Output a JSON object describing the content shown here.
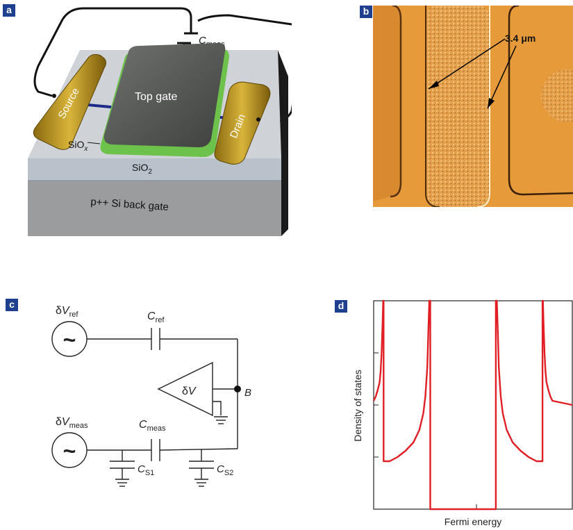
{
  "panels": {
    "a": {
      "tag": "a",
      "labels": {
        "meas_c": "C",
        "meas_sub": "meas",
        "top_gate": "Top gate",
        "source": "Source",
        "drain": "Drain",
        "siox_main": "SiO",
        "siox_sub": "x",
        "sio2_main": "SiO",
        "sio2_sub": "2",
        "back_gate": "p++ Si back gate"
      }
    },
    "b": {
      "tag": "b",
      "scale_label": "3.4 μm"
    },
    "c": {
      "tag": "c",
      "labels": {
        "dv": "δ",
        "v": "V",
        "ref_sub": "ref",
        "meas_sub": "meas",
        "c": "C",
        "s1_sub": "S1",
        "s2_sub": "S2",
        "node_b": "B",
        "tilde": "~"
      }
    },
    "d": {
      "tag": "d"
    }
  },
  "chart_data": {
    "type": "line",
    "xlabel": "Fermi energy",
    "ylabel": "Density of states",
    "ylim": [
      0,
      1
    ],
    "xlim": [
      0,
      1
    ],
    "grid": false,
    "series": [
      {
        "color": "#e01e24",
        "points": [
          [
            0.0,
            0.52
          ],
          [
            0.01,
            0.54
          ],
          [
            0.02,
            0.57
          ],
          [
            0.03,
            0.61
          ],
          [
            0.035,
            0.66
          ],
          [
            0.04,
            0.75
          ],
          [
            0.045,
            0.9
          ],
          [
            0.048,
            1.0
          ],
          [
            0.05,
            1.0
          ],
          [
            0.05,
            0.23
          ],
          [
            0.08,
            0.23
          ],
          [
            0.12,
            0.25
          ],
          [
            0.16,
            0.28
          ],
          [
            0.2,
            0.32
          ],
          [
            0.23,
            0.38
          ],
          [
            0.25,
            0.46
          ],
          [
            0.26,
            0.54
          ],
          [
            0.27,
            0.68
          ],
          [
            0.275,
            0.85
          ],
          [
            0.28,
            1.0
          ],
          [
            0.285,
            1.0
          ],
          [
            0.285,
            0.0
          ],
          [
            0.615,
            0.0
          ],
          [
            0.615,
            1.0
          ],
          [
            0.62,
            1.0
          ],
          [
            0.625,
            0.85
          ],
          [
            0.63,
            0.68
          ],
          [
            0.64,
            0.54
          ],
          [
            0.65,
            0.46
          ],
          [
            0.67,
            0.38
          ],
          [
            0.7,
            0.32
          ],
          [
            0.74,
            0.28
          ],
          [
            0.78,
            0.25
          ],
          [
            0.82,
            0.23
          ],
          [
            0.85,
            0.23
          ],
          [
            0.85,
            1.0
          ],
          [
            0.852,
            1.0
          ],
          [
            0.855,
            0.9
          ],
          [
            0.86,
            0.75
          ],
          [
            0.865,
            0.66
          ],
          [
            0.87,
            0.61
          ],
          [
            0.88,
            0.57
          ],
          [
            0.89,
            0.54
          ],
          [
            0.9,
            0.52
          ],
          [
            1.0,
            0.5
          ]
        ]
      }
    ]
  },
  "colors": {
    "tag_bg": "#1f3f8f",
    "curve": "#e01e24",
    "afm_base": "#e69a3a",
    "gold": "#b08a1a",
    "gate": "#5a5c5a",
    "oxide": "#6cc24a"
  }
}
